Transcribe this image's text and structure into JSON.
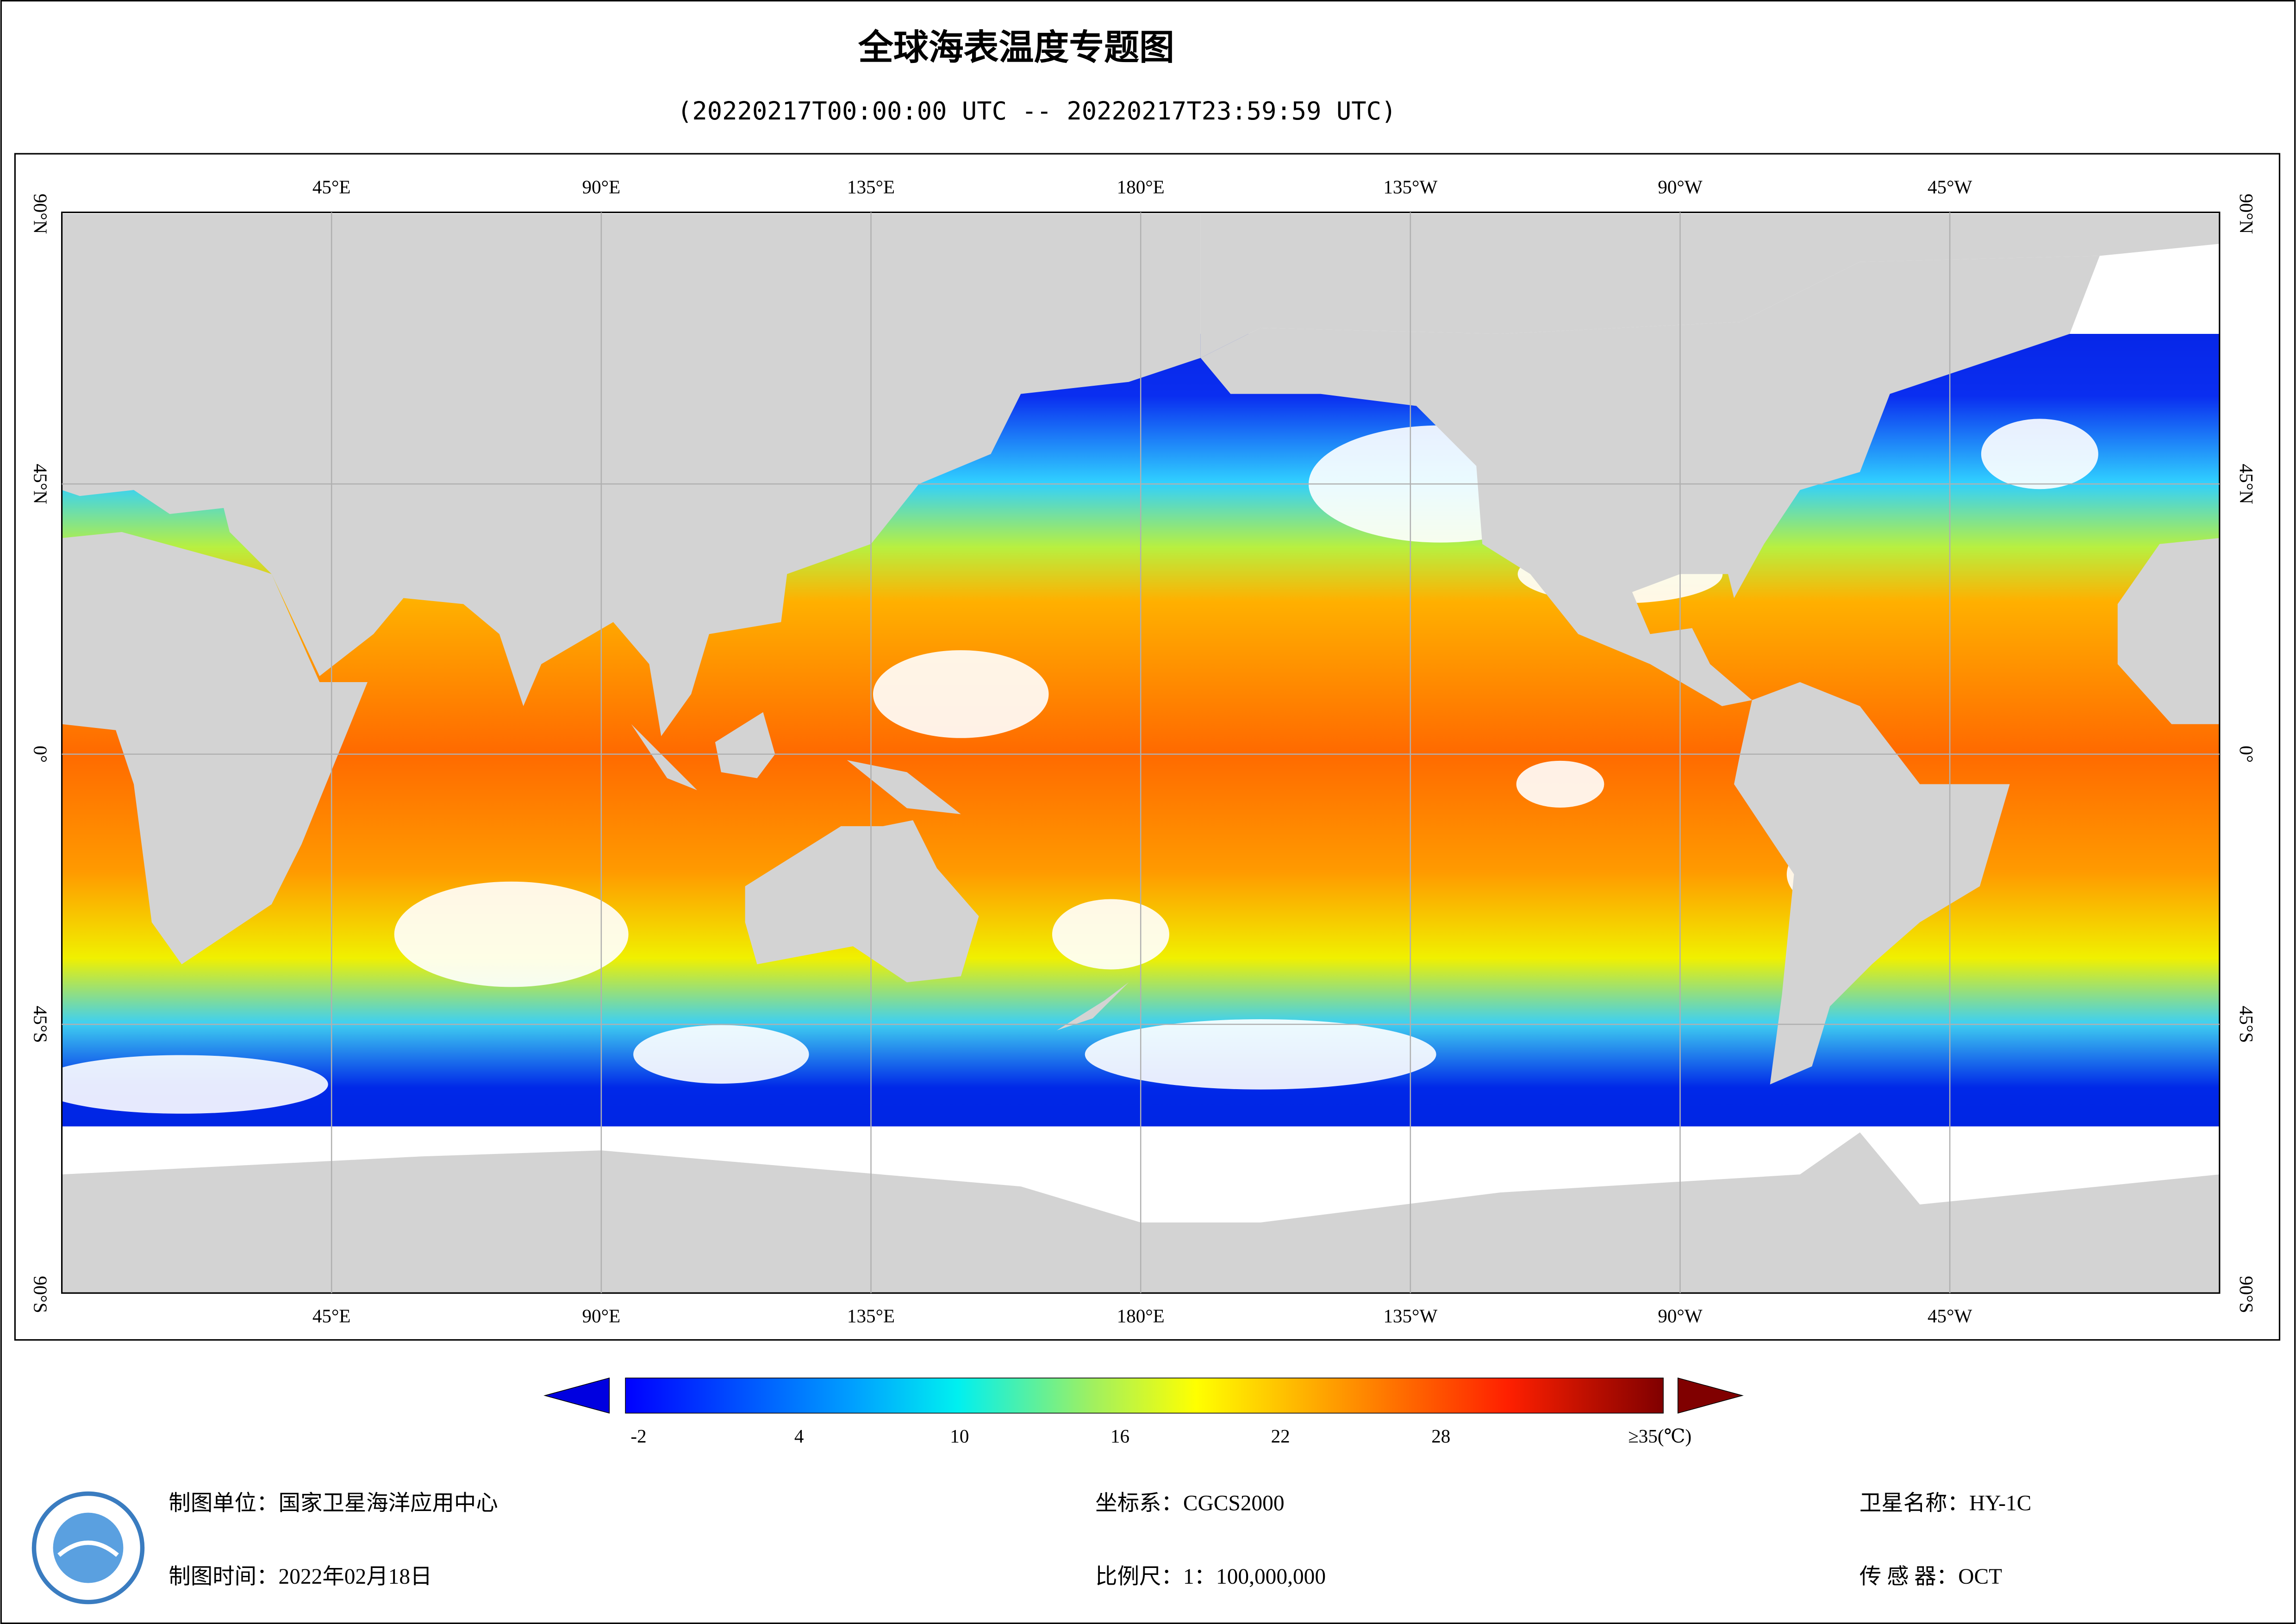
{
  "title": "全球海表温度专题图",
  "subtitle": "(20220217T00:00:00 UTC -- 20220217T23:59:59 UTC)",
  "map": {
    "lon_labels": [
      "45°E",
      "90°E",
      "135°E",
      "180°E",
      "135°W",
      "90°W",
      "45°W"
    ],
    "lat_labels": [
      "90°N",
      "45°N",
      "0°",
      "45°S",
      "90°S"
    ]
  },
  "colorbar": {
    "ticks": [
      -2,
      4,
      10,
      16,
      22,
      28,
      {
        "value": 35,
        "label": "≥35(℃)"
      }
    ]
  },
  "footer": {
    "unit": "制图单位：国家卫星海洋应用中心",
    "date": "制图时间：2022年02月18日",
    "crs": "坐标系：CGCS2000",
    "scale": "比例尺：1：100,000,000",
    "satellite": "卫星名称：HY-1C",
    "sensor": "传 感 器：OCT"
  }
}
